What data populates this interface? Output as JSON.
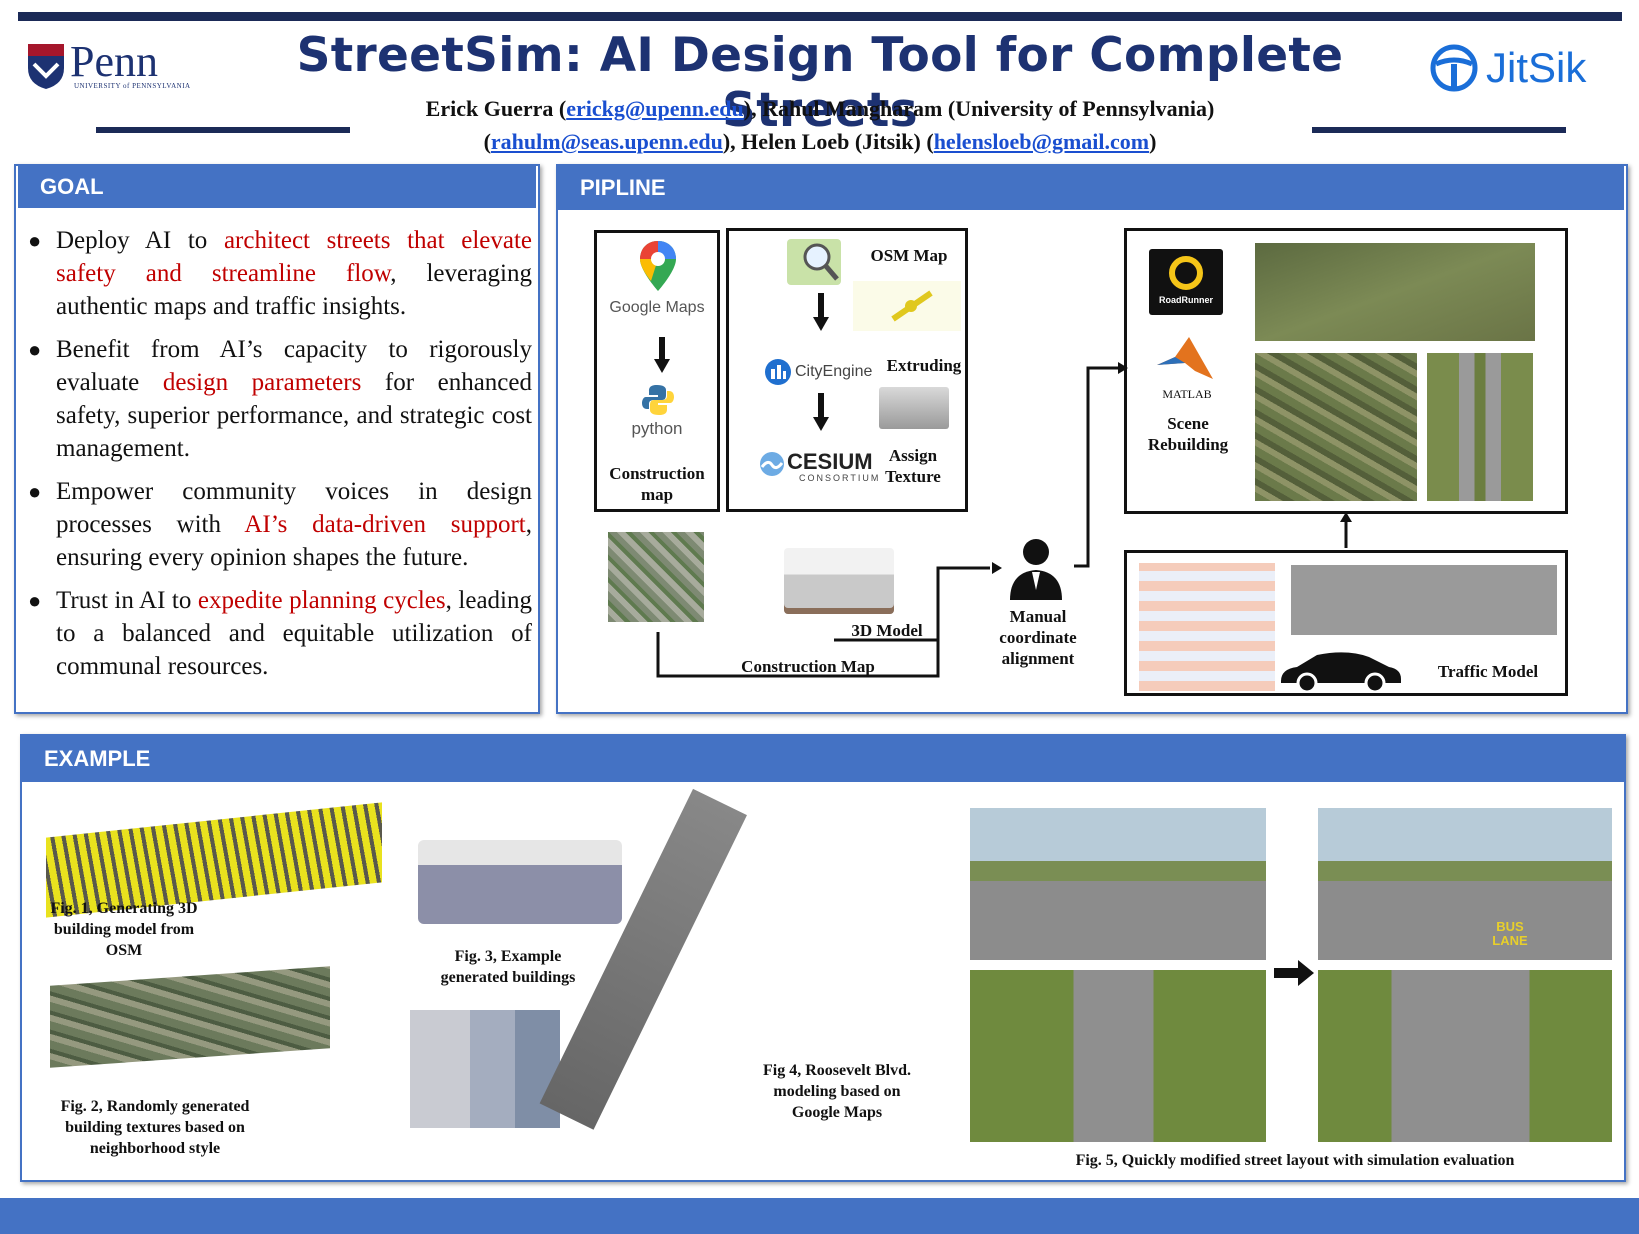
{
  "header": {
    "title": "StreetSim: AI Design Tool for Complete Streets",
    "penn_logo": "Penn",
    "penn_sub": "UNIVERSITY of PENNSYLVANIA",
    "jitsik_logo": "JitSik",
    "authors_line1_a": "Erick Guerra (",
    "authors_email1": "erickg@upenn.edu",
    "authors_line1_b": "), Rahul Mangharam (University of Pennsylvania)",
    "authors_line2_a": "(",
    "authors_email2": "rahulm@seas.upenn.edu",
    "authors_line2_b": "), Helen Loeb (Jitsik) (",
    "authors_email3": "helensloeb@gmail.com",
    "authors_line2_c": ")"
  },
  "goal": {
    "heading": "GOAL",
    "bullets": [
      {
        "pre": "Deploy AI to ",
        "hl": "architect streets that elevate safety and streamline flow",
        "post": ", leveraging authentic maps and traffic insights."
      },
      {
        "pre": "Benefit from AI’s capacity to rigorously evaluate ",
        "hl": "design parameters",
        "post": " for enhanced safety, superior performance, and strategic cost management."
      },
      {
        "pre": "Empower community voices in design processes with ",
        "hl": "AI’s data-driven support",
        "post": ", ensuring every opinion shapes the future."
      },
      {
        "pre": "Trust in AI to ",
        "hl": "expedite planning cycles",
        "post": ", leading to a balanced and equitable utilization of communal resources."
      }
    ]
  },
  "pipeline": {
    "heading": "PIPLINE",
    "google_maps": "Google Maps",
    "python": "python",
    "construction_map_label": "Construction map",
    "osm_map": "OSM Map",
    "cityengine": "CityEngine",
    "extruding": "Extruding",
    "cesium": "CESIUM",
    "cesium_sub": "CONSORTIUM",
    "assign_texture": "Assign Texture",
    "model_3d": "3D Model",
    "construction_map": "Construction Map",
    "manual": "Manual coordinate alignment",
    "roadrunner": "RoadRunner",
    "matlab": "MATLAB",
    "scene_rebuilding": "Scene Rebuilding",
    "traffic_model": "Traffic Model"
  },
  "example": {
    "heading": "EXAMPLE",
    "fig1": "Fig. 1, Generating 3D building model from OSM",
    "fig2": "Fig. 2, Randomly generated building textures based on neighborhood style",
    "fig3": "Fig. 3, Example generated buildings",
    "fig4": "Fig 4, Roosevelt Blvd. modeling based on Google Maps",
    "fig5": "Fig. 5, Quickly modified street layout with simulation evaluation",
    "bus_lane": "BUS LANE"
  },
  "colors": {
    "accent": "#4472c4",
    "navy": "#1b2a57",
    "highlight": "#c00000",
    "title": "#1d3272"
  }
}
